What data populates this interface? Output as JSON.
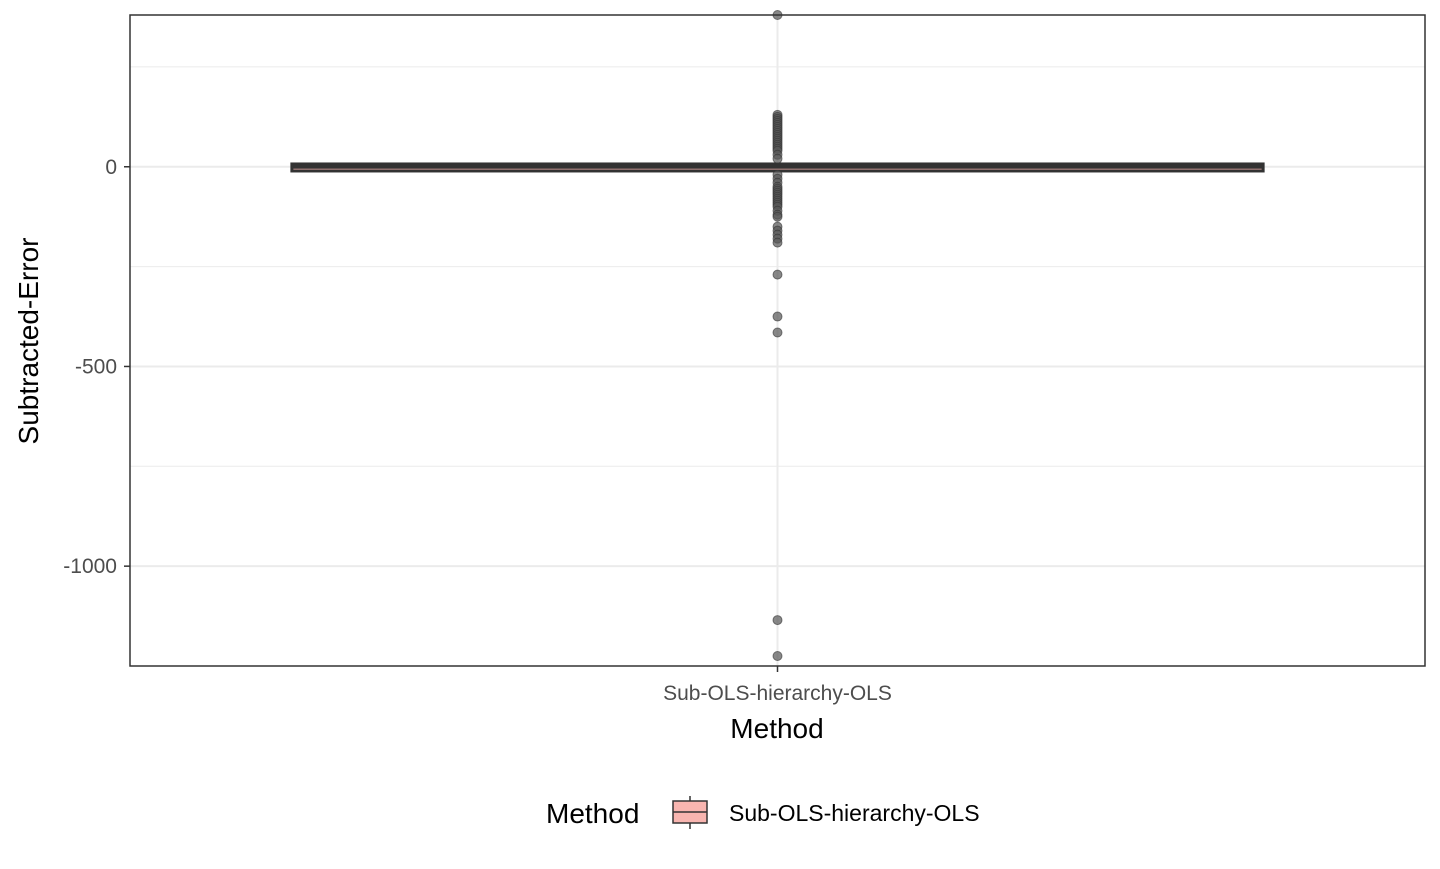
{
  "chart_data": {
    "type": "box",
    "title": "",
    "xlabel": "Method",
    "ylabel": "Subtracted-Error",
    "categories": [
      "Sub-OLS-hierarchy-OLS"
    ],
    "ylim": [
      -1250,
      380
    ],
    "y_ticks": [
      0,
      -500,
      -1000
    ],
    "y_tick_labels": [
      "0",
      "-500",
      "-1000"
    ],
    "grid": true,
    "legend": {
      "title": "Method",
      "position": "bottom",
      "entries": [
        "Sub-OLS-hierarchy-OLS"
      ]
    },
    "series": [
      {
        "category": "Sub-OLS-hierarchy-OLS",
        "fill": "#f8b5b0",
        "stats": {
          "lower_whisker": -3,
          "q1": -2,
          "median": 0,
          "q3": 2,
          "upper_whisker": 3
        },
        "outliers": [
          380,
          130,
          125,
          120,
          115,
          110,
          105,
          100,
          95,
          90,
          85,
          80,
          75,
          70,
          65,
          60,
          55,
          50,
          45,
          40,
          30,
          20,
          -20,
          -30,
          -40,
          -50,
          -55,
          -60,
          -65,
          -70,
          -75,
          -80,
          -85,
          -90,
          -95,
          -100,
          -110,
          -120,
          -125,
          -150,
          -160,
          -170,
          -180,
          -190,
          -270,
          -375,
          -415,
          -1135,
          -1225
        ]
      }
    ],
    "colors": {
      "box_fill": "#f8b5b0",
      "box_stroke": "#333333",
      "outlier": "#555555",
      "grid": "#ebebeb",
      "panel_border": "#333333"
    }
  }
}
